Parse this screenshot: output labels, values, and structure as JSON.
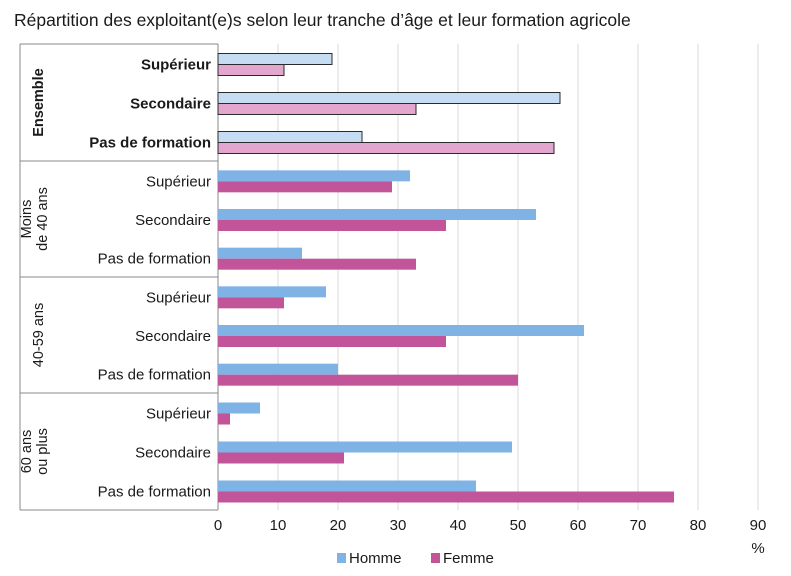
{
  "chart_data": {
    "type": "bar",
    "orientation": "horizontal",
    "title": "Répartition des exploitant(e)s selon leur tranche d’âge et leur formation agricole",
    "xlabel": "%",
    "xlim": [
      0,
      90
    ],
    "xticks": [
      0,
      10,
      20,
      30,
      40,
      50,
      60,
      70,
      80,
      90
    ],
    "grid": true,
    "legend_position": "bottom",
    "series": [
      {
        "name": "Homme",
        "color": "#7fb2e5",
        "color_highlight": "#c5dcf2"
      },
      {
        "name": "Femme",
        "color": "#c2549a",
        "color_highlight": "#e2a6cf"
      }
    ],
    "groups": [
      {
        "label": "Ensemble",
        "highlight": true,
        "categories": [
          {
            "label": "Supérieur",
            "values": [
              19,
              11
            ]
          },
          {
            "label": "Secondaire",
            "values": [
              57,
              33
            ]
          },
          {
            "label": "Pas de formation",
            "values": [
              24,
              56
            ]
          }
        ]
      },
      {
        "label": [
          "Moins",
          "de 40 ans"
        ],
        "highlight": false,
        "categories": [
          {
            "label": "Supérieur",
            "values": [
              32,
              29
            ]
          },
          {
            "label": "Secondaire",
            "values": [
              53,
              38
            ]
          },
          {
            "label": "Pas de formation",
            "values": [
              14,
              33
            ]
          }
        ]
      },
      {
        "label": [
          "40-59 ans"
        ],
        "highlight": false,
        "categories": [
          {
            "label": "Supérieur",
            "values": [
              18,
              11
            ]
          },
          {
            "label": "Secondaire",
            "values": [
              61,
              38
            ]
          },
          {
            "label": "Pas de formation",
            "values": [
              20,
              50
            ]
          }
        ]
      },
      {
        "label": [
          "60 ans",
          "ou plus"
        ],
        "highlight": false,
        "categories": [
          {
            "label": "Supérieur",
            "values": [
              7,
              2
            ]
          },
          {
            "label": "Secondaire",
            "values": [
              49,
              21
            ]
          },
          {
            "label": "Pas de formation",
            "values": [
              43,
              76
            ]
          }
        ]
      }
    ]
  }
}
